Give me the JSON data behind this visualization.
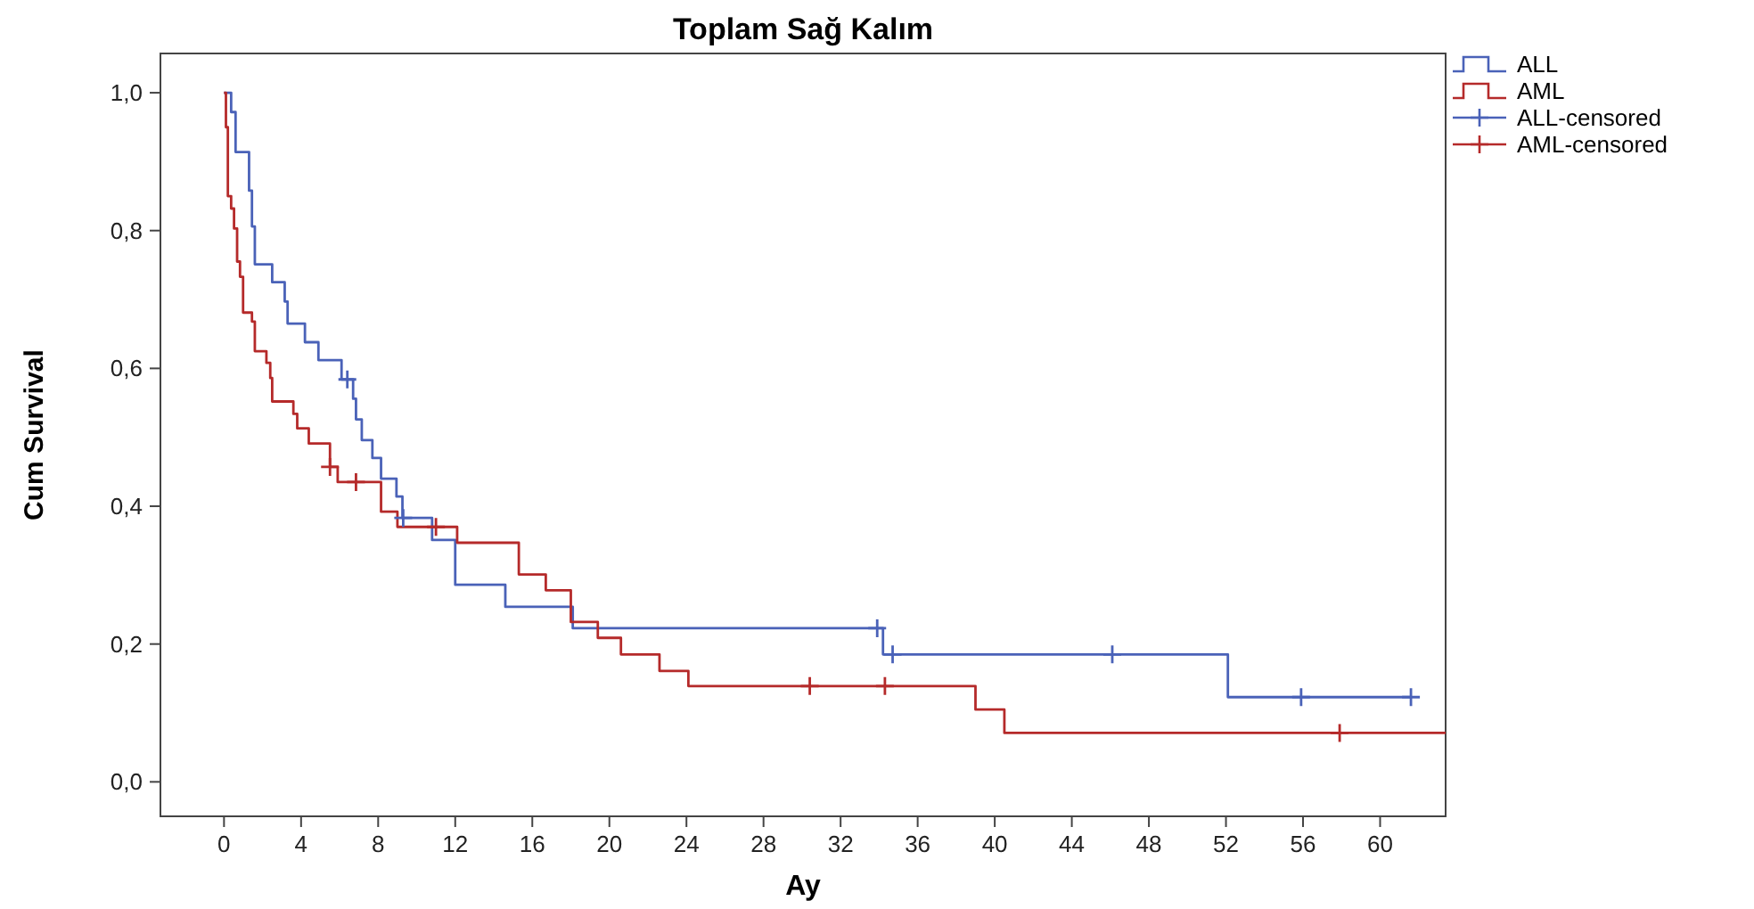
{
  "chart_data": {
    "type": "step",
    "title": "Toplam Sağ Kalım",
    "xlabel": "Ay",
    "ylabel": "Cum Survival",
    "xlim": [
      -3.3,
      63.4
    ],
    "ylim": [
      -0.05,
      1.057
    ],
    "xticks": [
      0,
      4,
      8,
      12,
      16,
      20,
      24,
      28,
      32,
      36,
      40,
      44,
      48,
      52,
      56,
      60
    ],
    "yticks": [
      {
        "value": 0,
        "label": "0,0"
      },
      {
        "value": 0.2,
        "label": "0,2"
      },
      {
        "value": 0.4,
        "label": "0,4"
      },
      {
        "value": 0.6,
        "label": "0,6"
      },
      {
        "value": 0.8,
        "label": "0,8"
      },
      {
        "value": 1,
        "label": "1,0"
      }
    ],
    "grid": false,
    "legend": "right",
    "series": [
      {
        "name": "ALL",
        "color": "#4a62b8",
        "x": [
          0,
          0.37,
          0.6,
          1.3,
          1.45,
          1.6,
          2.5,
          3.15,
          3.3,
          4.2,
          4.9,
          6.1,
          6.7,
          6.85,
          7.15,
          7.7,
          8.15,
          8.95,
          9.26,
          10.8,
          12.0,
          14.6,
          18.1,
          34.2,
          52.1,
          61.6
        ],
        "values": [
          1,
          0.972,
          0.914,
          0.858,
          0.806,
          0.751,
          0.725,
          0.697,
          0.665,
          0.638,
          0.612,
          0.584,
          0.556,
          0.526,
          0.496,
          0.47,
          0.44,
          0.414,
          0.383,
          0.351,
          0.286,
          0.254,
          0.223,
          0.185,
          0.123,
          0.123
        ]
      },
      {
        "name": "AML",
        "color": "#b52a2a",
        "x": [
          0,
          0.1,
          0.2,
          0.37,
          0.52,
          0.68,
          0.83,
          0.99,
          1.45,
          1.6,
          2.2,
          2.4,
          2.5,
          3.6,
          3.8,
          4.4,
          5.5,
          5.9,
          8.15,
          9.0,
          12.1,
          15.3,
          16.7,
          18.0,
          19.4,
          20.6,
          22.6,
          24.1,
          39.0,
          40.5,
          63.4
        ],
        "values": [
          1,
          0.95,
          0.85,
          0.832,
          0.803,
          0.755,
          0.733,
          0.681,
          0.668,
          0.625,
          0.608,
          0.586,
          0.552,
          0.534,
          0.513,
          0.491,
          0.457,
          0.435,
          0.392,
          0.37,
          0.347,
          0.301,
          0.278,
          0.232,
          0.209,
          0.185,
          0.161,
          0.139,
          0.105,
          0.071,
          0.071
        ]
      },
      {
        "name": "ALL-censored",
        "type": "scatter",
        "marker": "cross",
        "color": "#4a62b8",
        "x": [
          6.4,
          9.3,
          33.9,
          34.7,
          46.1,
          55.9,
          61.6
        ],
        "values": [
          0.584,
          0.383,
          0.223,
          0.185,
          0.185,
          0.123,
          0.123
        ]
      },
      {
        "name": "AML-censored",
        "type": "scatter",
        "marker": "cross",
        "color": "#b52a2a",
        "x": [
          5.5,
          6.85,
          11.0,
          30.4,
          34.3,
          57.9
        ],
        "values": [
          0.457,
          0.435,
          0.37,
          0.139,
          0.139,
          0.071
        ]
      }
    ]
  }
}
